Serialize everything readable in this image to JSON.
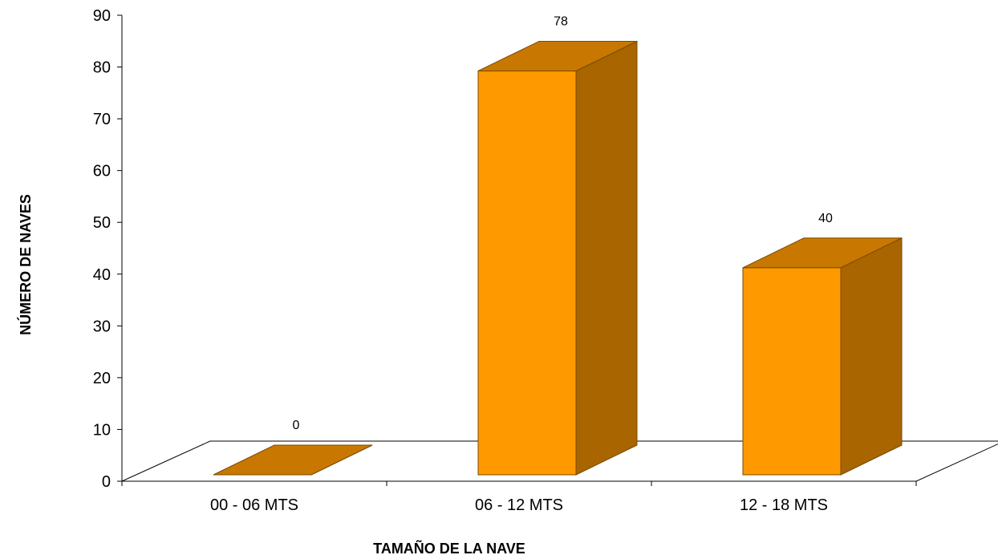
{
  "chart_data": {
    "type": "bar",
    "categories": [
      "00 - 06 MTS",
      "06 - 12 MTS",
      "12 - 18 MTS"
    ],
    "values": [
      0,
      78,
      40
    ],
    "xlabel": "TAMAÑO DE LA NAVE",
    "ylabel": "NÚMERO DE NAVES",
    "ylim": [
      0,
      90
    ],
    "yticks": [
      0,
      10,
      20,
      30,
      40,
      50,
      60,
      70,
      80,
      90
    ],
    "data_labels": [
      "0",
      "78",
      "40"
    ],
    "three_d": true,
    "grid": false,
    "legend": "none",
    "colors": {
      "bar_front": "#FF9900",
      "bar_side": "#A86500",
      "bar_top": "#C87800",
      "bar_outline": "#7A4A00"
    }
  }
}
